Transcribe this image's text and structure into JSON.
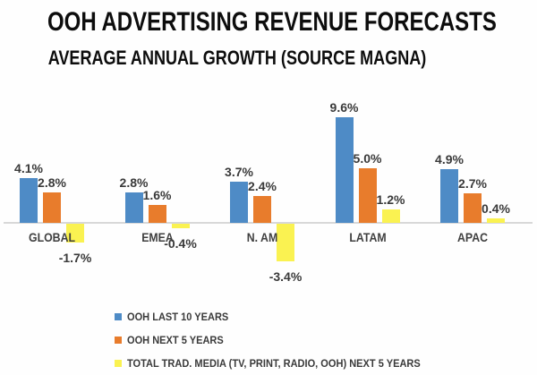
{
  "chart": {
    "title": "OOH ADVERTISING REVENUE FORECASTS",
    "subtitle": "AVERAGE ANNUAL GROWTH (SOURCE MAGNA)"
  },
  "chart_data": {
    "type": "bar",
    "categories": [
      "GLOBAL",
      "EMEA",
      "N. AM",
      "LATAM",
      "APAC"
    ],
    "series": [
      {
        "name": "OOH LAST 10 YEARS",
        "color": "#4E8BC6",
        "values": [
          4.1,
          2.8,
          3.7,
          9.6,
          4.9
        ],
        "labels": [
          "4.1%",
          "2.8%",
          "3.7%",
          "9.6%",
          "4.9%"
        ]
      },
      {
        "name": "OOH NEXT 5 YEARS",
        "color": "#E87C2C",
        "values": [
          2.8,
          1.6,
          2.4,
          5.0,
          2.7
        ],
        "labels": [
          "2.8%",
          "1.6%",
          "2.4%",
          "5.0%",
          "2.7%"
        ]
      },
      {
        "name": "TOTAL TRAD. MEDIA (TV, PRINT, RADIO, OOH) NEXT 5 YEARS",
        "color": "#FAF251",
        "values": [
          -1.7,
          -0.4,
          -3.4,
          1.2,
          0.4
        ],
        "labels": [
          "-1.7%",
          "-0.4%",
          "-3.4%",
          "1.2%",
          "0.4%"
        ]
      }
    ],
    "ylim": [
      -4.5,
      10.5
    ],
    "grid": false,
    "legend_position": "bottom-left",
    "axis_line_color": "#D8D8D8",
    "label_color": "#3A3A3A",
    "background_color": "#FEFEFE"
  }
}
